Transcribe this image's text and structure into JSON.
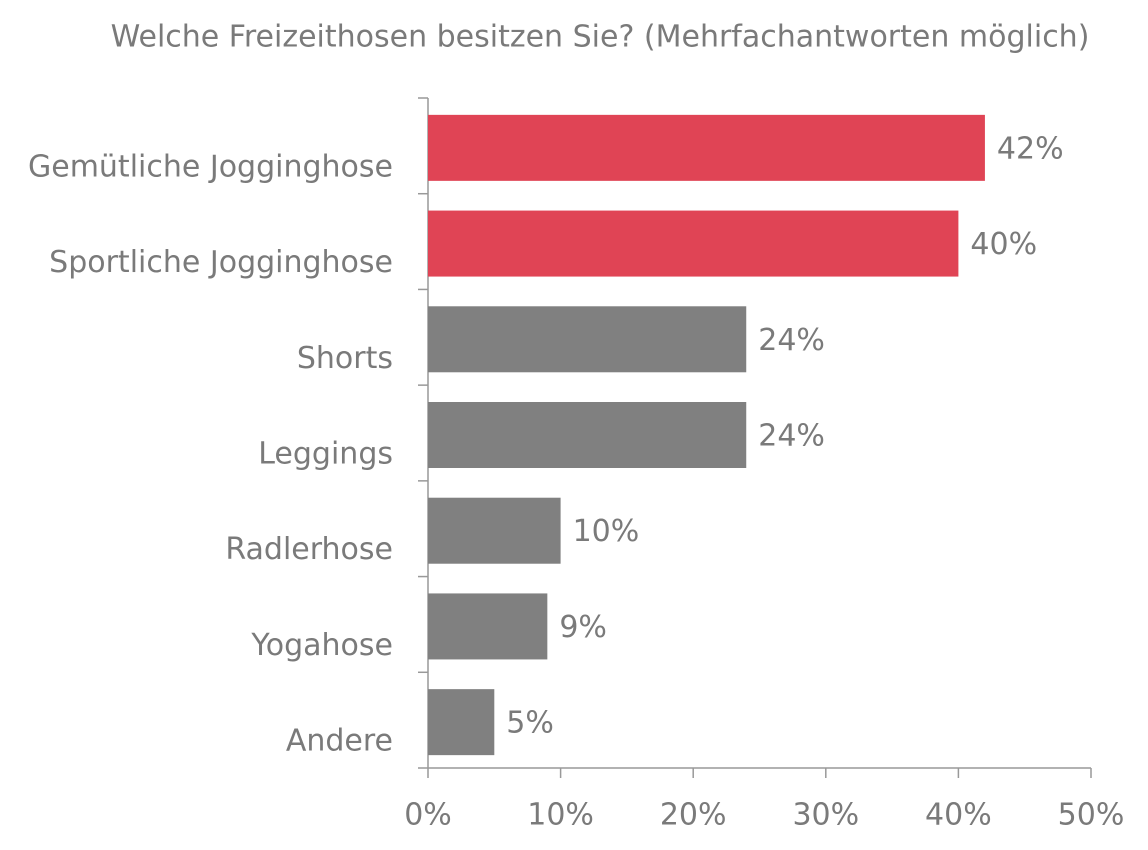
{
  "chart_data": {
    "type": "hbar",
    "title": "Welche Freizeithosen besitzen Sie? (Mehrfachantworten möglich)",
    "categories": [
      "Gemütliche Jogginghose",
      "Sportliche Jogginghose",
      "Shorts",
      "Leggings",
      "Radlerhose",
      "Yogahose",
      "Andere"
    ],
    "values": [
      42,
      40,
      24,
      24,
      10,
      9,
      5
    ],
    "value_labels": [
      "42%",
      "40%",
      "24%",
      "24%",
      "10%",
      "9%",
      "5%"
    ],
    "colors": [
      "#e04455",
      "#e04455",
      "#808080",
      "#808080",
      "#808080",
      "#808080",
      "#808080"
    ],
    "xlim": [
      0,
      50
    ],
    "xticks": [
      {
        "value": 0,
        "label": "0%"
      },
      {
        "value": 10,
        "label": "10%"
      },
      {
        "value": 20,
        "label": "20%"
      },
      {
        "value": 30,
        "label": "30%"
      },
      {
        "value": 40,
        "label": "40%"
      },
      {
        "value": 50,
        "label": "50%"
      }
    ],
    "grid": false
  }
}
